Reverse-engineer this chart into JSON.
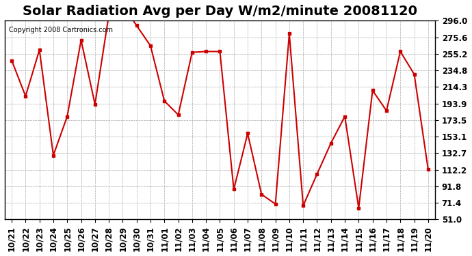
{
  "title": "Solar Radiation Avg per Day W/m2/minute 20081120",
  "copyright": "Copyright 2008 Cartronics.com",
  "labels": [
    "10/21",
    "10/22",
    "10/23",
    "10/24",
    "10/25",
    "10/26",
    "10/27",
    "10/28",
    "10/29",
    "10/30",
    "10/31",
    "11/01",
    "11/02",
    "11/03",
    "11/04",
    "11/05",
    "11/06",
    "11/07",
    "11/08",
    "11/09",
    "11/10",
    "11/11",
    "11/12",
    "11/13",
    "11/14",
    "11/15",
    "11/16",
    "11/17",
    "11/18",
    "11/19",
    "11/20"
  ],
  "values": [
    247,
    203,
    260,
    130,
    178,
    272,
    193,
    303,
    315,
    290,
    265,
    197,
    180,
    257,
    258,
    258,
    88,
    157,
    82,
    70,
    280,
    68,
    107,
    145,
    178,
    65,
    210,
    185,
    258,
    230,
    113
  ],
  "line_color": "#cc0000",
  "marker_color": "#cc0000",
  "bg_color": "#ffffff",
  "plot_bg_color": "#ffffff",
  "grid_color": "#aaaaaa",
  "yticks": [
    51.0,
    71.4,
    91.8,
    112.2,
    132.7,
    153.1,
    173.5,
    193.9,
    214.3,
    234.8,
    255.2,
    275.6,
    296.0
  ],
  "ymin": 51.0,
  "ymax": 296.0,
  "title_fontsize": 14,
  "copyright_fontsize": 7,
  "tick_fontsize": 8.5
}
